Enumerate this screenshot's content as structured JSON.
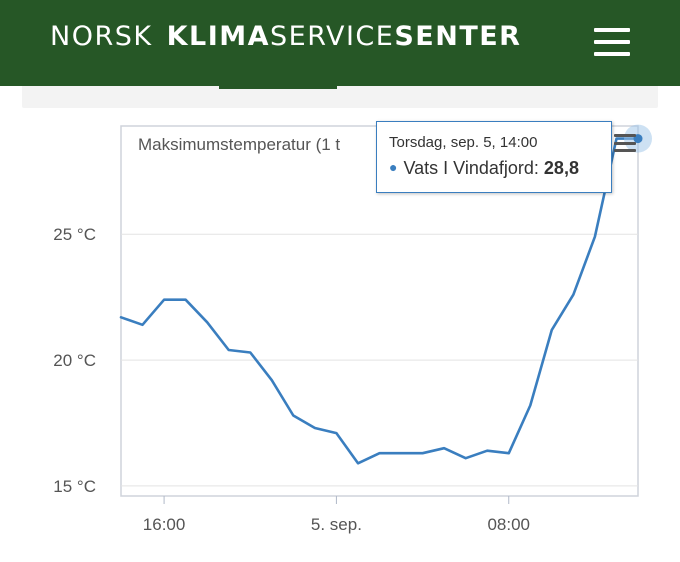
{
  "header": {
    "brand_part1": "NORSK",
    "brand_part2": "KLIMA",
    "brand_part3": "SERVICE",
    "brand_part4": "SENTER",
    "menu_icon": "hamburger-menu-icon",
    "background_color": "#265726"
  },
  "chart_menu_icon": "hamburger-menu-icon",
  "tooltip": {
    "date": "Torsdag, sep. 5, 14:00",
    "series": "Vats I Vindafjord",
    "separator": ":",
    "value": "28,8"
  },
  "chart_data": {
    "type": "line",
    "title": "Maksimumstemperatur (1 t",
    "x_tick_labels": [
      "16:00",
      "5. sep.",
      "08:00"
    ],
    "y_tick_labels": [
      "15 °C",
      "20 °C",
      "25 °C"
    ],
    "ylim": [
      14.6,
      29.3
    ],
    "xlim": [
      14.0,
      38.0
    ],
    "grid": true,
    "series_color": "#3a7ebf",
    "series": [
      {
        "name": "Vats I Vindafjord",
        "x": [
          14,
          15,
          16,
          17,
          18,
          19,
          20,
          21,
          22,
          23,
          24,
          25,
          26,
          27,
          28,
          29,
          30,
          31,
          32,
          33,
          34,
          35,
          36,
          37,
          38
        ],
        "values": [
          21.7,
          21.4,
          22.4,
          22.4,
          21.5,
          20.4,
          20.3,
          19.2,
          17.8,
          17.3,
          17.1,
          15.9,
          16.3,
          16.3,
          16.3,
          16.5,
          16.1,
          16.4,
          16.3,
          18.2,
          21.2,
          22.6,
          24.9,
          28.8,
          28.8
        ]
      }
    ]
  }
}
